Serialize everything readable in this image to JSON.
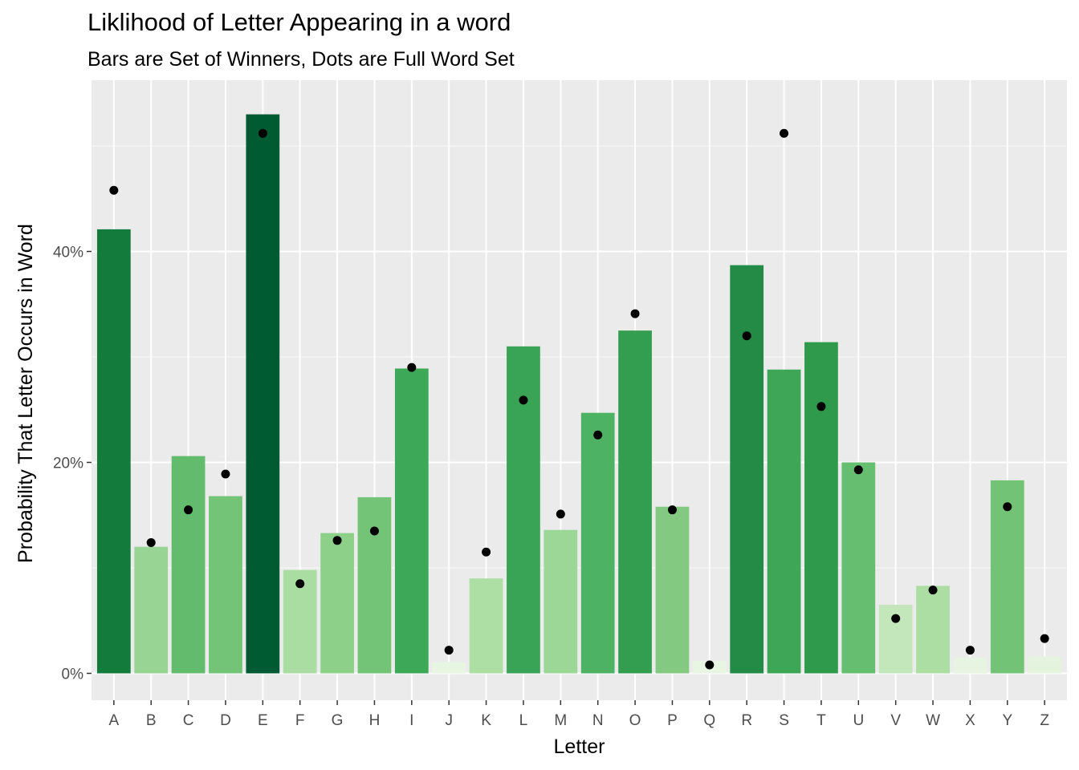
{
  "chart_data": {
    "type": "bar",
    "title": "Liklihood of Letter Appearing in a word",
    "subtitle": "Bars are Set of Winners, Dots are Full Word Set",
    "xlabel": "Letter",
    "ylabel": "Probability That Letter Occurs in Word",
    "ylim": [
      -0.025,
      0.555
    ],
    "yticks": [
      0,
      0.2,
      0.4
    ],
    "ytick_labels": [
      "0%",
      "20%",
      "40%"
    ],
    "grid": true,
    "categories": [
      "A",
      "B",
      "C",
      "D",
      "E",
      "F",
      "G",
      "H",
      "I",
      "J",
      "K",
      "L",
      "M",
      "N",
      "O",
      "P",
      "Q",
      "R",
      "S",
      "T",
      "U",
      "V",
      "W",
      "X",
      "Y",
      "Z"
    ],
    "series": [
      {
        "type": "bar",
        "values": [
          0.421,
          0.12,
          0.206,
          0.168,
          0.53,
          0.098,
          0.133,
          0.167,
          0.289,
          0.011,
          0.09,
          0.31,
          0.136,
          0.247,
          0.325,
          0.158,
          0.012,
          0.387,
          0.288,
          0.314,
          0.2,
          0.065,
          0.083,
          0.015,
          0.183,
          0.016
        ],
        "colors": [
          "#137c3c",
          "#98d594",
          "#63bc6e",
          "#73c476",
          "#005a32",
          "#aadda1",
          "#8cd08a",
          "#73c476",
          "#3ca858",
          "#e8f5e3",
          "#addea4",
          "#39a455",
          "#9dd798",
          "#4eb264",
          "#339d50",
          "#83c981",
          "#e8f5e3",
          "#238b45",
          "#3da757",
          "#2f9a4c",
          "#66be70",
          "#c3e6bb",
          "#acdea4",
          "#e6f4e1",
          "#72c375",
          "#e3f3dd"
        ]
      },
      {
        "type": "scatter",
        "values": [
          0.458,
          0.124,
          0.155,
          0.189,
          0.512,
          0.085,
          0.126,
          0.135,
          0.29,
          0.022,
          0.115,
          0.259,
          0.151,
          0.226,
          0.341,
          0.155,
          0.008,
          0.32,
          0.512,
          0.253,
          0.193,
          0.052,
          0.079,
          0.022,
          0.158,
          0.033
        ],
        "color": "#000000"
      }
    ]
  }
}
